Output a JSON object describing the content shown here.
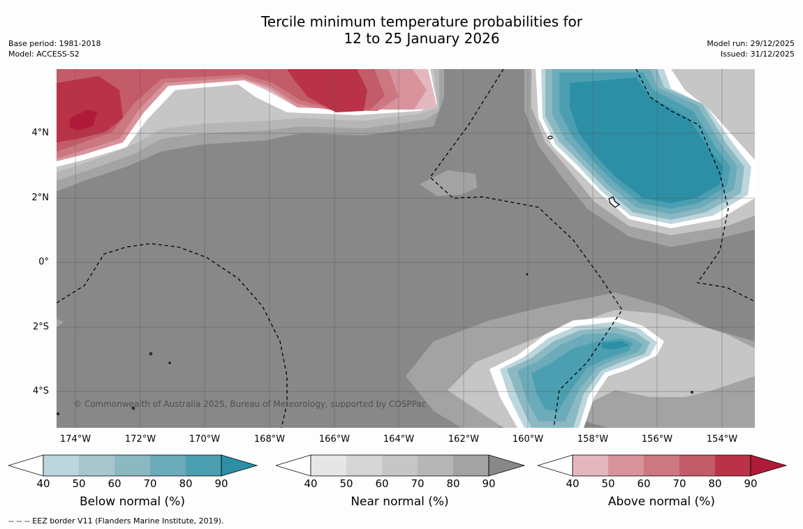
{
  "title": {
    "line1": "Tercile minimum temperature probabilities for",
    "line2": "12 to 25 January 2026"
  },
  "meta": {
    "base_period": "Base period: 1981-2018",
    "model": "Model: ACCESS-S2",
    "model_run": "Model run: 29/12/2025",
    "issued": "Issued: 31/12/2025"
  },
  "map": {
    "lat_labels": [
      "4°N",
      "2°N",
      "0°",
      "2°S",
      "4°S"
    ],
    "lon_labels": [
      "174°W",
      "172°W",
      "170°W",
      "168°W",
      "166°W",
      "164°W",
      "162°W",
      "160°W",
      "158°W",
      "156°W",
      "154°W"
    ],
    "copyright": "© Commonwealth of Australia 2025, Bureau of Meteorology, supported by COSPPac"
  },
  "colorbars": [
    {
      "title": "Below normal (%)",
      "ticks": [
        "40",
        "50",
        "60",
        "70",
        "80",
        "90"
      ],
      "colors": [
        "#ffffff",
        "#bdd6dd",
        "#a7c7cd",
        "#8bb9c2",
        "#6cabba",
        "#4b9fb1",
        "#2c8fa6"
      ]
    },
    {
      "title": "Near normal (%)",
      "ticks": [
        "40",
        "50",
        "60",
        "70",
        "80",
        "90"
      ],
      "colors": [
        "#ffffff",
        "#e6e6e6",
        "#d6d6d6",
        "#c6c6c6",
        "#b6b6b6",
        "#a3a3a3",
        "#888888"
      ]
    },
    {
      "title": "Above normal (%)",
      "ticks": [
        "40",
        "50",
        "60",
        "70",
        "80",
        "90"
      ],
      "colors": [
        "#ffffff",
        "#e2b8be",
        "#d8939c",
        "#cc7880",
        "#c35c69",
        "#b93247",
        "#b01a38"
      ]
    }
  ],
  "footer": "--  --  -- EEZ border V11 (Flanders Marine Institute, 2019)."
}
